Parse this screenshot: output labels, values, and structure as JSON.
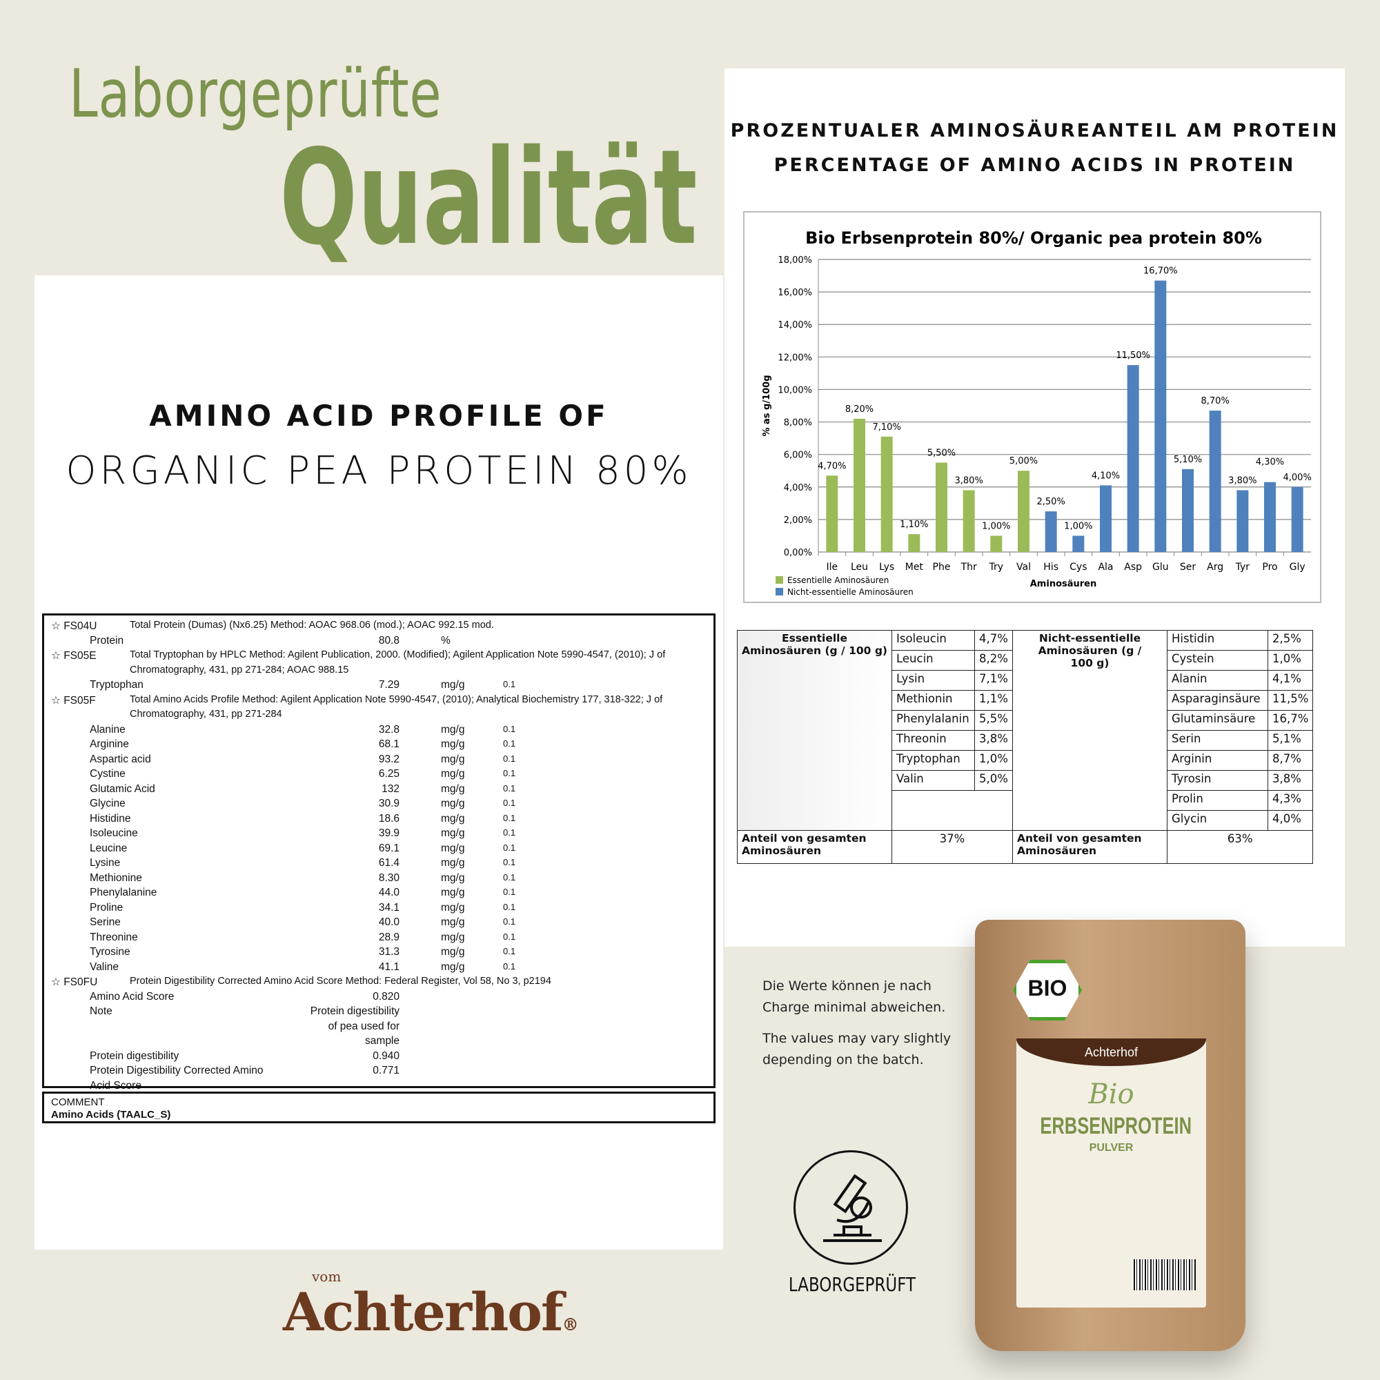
{
  "header": {
    "line1": "Laborgeprüfte",
    "line2": "Qualität"
  },
  "right_heading": {
    "line1": "PROZENTUALER AMINOSÄUREANTEIL AM PROTEIN",
    "line2": "PERCENTAGE OF AMINO ACIDS IN PROTEIN"
  },
  "left_heading": {
    "line1": "AMINO ACID PROFILE OF",
    "line2": "ORGANIC PEA PROTEIN 80%"
  },
  "lab_report": {
    "rows": [
      {
        "type": "method",
        "code": "☆ FS04U",
        "desc": "Total Protein (Dumas) (Nx6.25)    Method: AOAC 968.06 (mod.); AOAC 992.15 mod."
      },
      {
        "type": "result",
        "name": "Protein",
        "value": "80.8",
        "unit": "%",
        "loq": ""
      },
      {
        "type": "method",
        "code": "☆ FS05E",
        "desc": "Total Tryptophan by HPLC    Method: Agilent Publication, 2000. (Modified); Agilent Application Note 5990-4547, (2010); J of"
      },
      {
        "type": "cont",
        "desc": "Chromatography, 431, pp 271-284; AOAC 988.15"
      },
      {
        "type": "result",
        "name": "Tryptophan",
        "value": "7.29",
        "unit": "mg/g",
        "loq": "0.1"
      },
      {
        "type": "method",
        "code": "☆ FS05F",
        "desc": "Total Amino Acids Profile    Method: Agilent Application Note 5990-4547, (2010); Analytical Biochemistry 177, 318-322; J of"
      },
      {
        "type": "cont",
        "desc": "Chromatography, 431, pp 271-284"
      },
      {
        "type": "result",
        "name": "Alanine",
        "value": "32.8",
        "unit": "mg/g",
        "loq": "0.1"
      },
      {
        "type": "result",
        "name": "Arginine",
        "value": "68.1",
        "unit": "mg/g",
        "loq": "0.1"
      },
      {
        "type": "result",
        "name": "Aspartic acid",
        "value": "93.2",
        "unit": "mg/g",
        "loq": "0.1"
      },
      {
        "type": "result",
        "name": "Cystine",
        "value": "6.25",
        "unit": "mg/g",
        "loq": "0.1"
      },
      {
        "type": "result",
        "name": "Glutamic Acid",
        "value": "132",
        "unit": "mg/g",
        "loq": "0.1"
      },
      {
        "type": "result",
        "name": "Glycine",
        "value": "30.9",
        "unit": "mg/g",
        "loq": "0.1"
      },
      {
        "type": "result",
        "name": "Histidine",
        "value": "18.6",
        "unit": "mg/g",
        "loq": "0.1"
      },
      {
        "type": "result",
        "name": "Isoleucine",
        "value": "39.9",
        "unit": "mg/g",
        "loq": "0.1"
      },
      {
        "type": "result",
        "name": "Leucine",
        "value": "69.1",
        "unit": "mg/g",
        "loq": "0.1"
      },
      {
        "type": "result",
        "name": "Lysine",
        "value": "61.4",
        "unit": "mg/g",
        "loq": "0.1"
      },
      {
        "type": "result",
        "name": "Methionine",
        "value": "8.30",
        "unit": "mg/g",
        "loq": "0.1"
      },
      {
        "type": "result",
        "name": "Phenylalanine",
        "value": "44.0",
        "unit": "mg/g",
        "loq": "0.1"
      },
      {
        "type": "result",
        "name": "Proline",
        "value": "34.1",
        "unit": "mg/g",
        "loq": "0.1"
      },
      {
        "type": "result",
        "name": "Serine",
        "value": "40.0",
        "unit": "mg/g",
        "loq": "0.1"
      },
      {
        "type": "result",
        "name": "Threonine",
        "value": "28.9",
        "unit": "mg/g",
        "loq": "0.1"
      },
      {
        "type": "result",
        "name": "Tyrosine",
        "value": "31.3",
        "unit": "mg/g",
        "loq": "0.1"
      },
      {
        "type": "result",
        "name": "Valine",
        "value": "41.1",
        "unit": "mg/g",
        "loq": "0.1"
      },
      {
        "type": "method",
        "code": "☆ FS0FU",
        "desc": "Protein Digestibility Corrected Amino Acid Score    Method: Federal Register, Vol 58, No 3, p2194"
      },
      {
        "type": "result",
        "name": "Amino Acid Score",
        "value": "0.820",
        "unit": "",
        "loq": ""
      },
      {
        "type": "result",
        "name": "Note",
        "value": "Protein digestibility",
        "unit": "",
        "loq": ""
      },
      {
        "type": "result",
        "name": "",
        "value": "of pea used for",
        "unit": "",
        "loq": ""
      },
      {
        "type": "result",
        "name": "",
        "value": "sample",
        "unit": "",
        "loq": ""
      },
      {
        "type": "result",
        "name": "Protein digestibility",
        "value": "0.940",
        "unit": "",
        "loq": ""
      },
      {
        "type": "result",
        "name": "Protein Digestibility Corrected Amino",
        "value": "0.771",
        "unit": "",
        "loq": ""
      },
      {
        "type": "result",
        "name": "Acid Score",
        "value": "",
        "unit": "",
        "loq": ""
      }
    ],
    "comment_label": "COMMENT",
    "comment_value": "Amino Acids (TAALC_S)"
  },
  "chart_data": {
    "type": "bar",
    "title": "Bio Erbsenprotein  80%/ Organic pea protein 80%",
    "xlabel": "Aminosäuren",
    "ylabel": "% as g/100g",
    "ylim": [
      0,
      18
    ],
    "yticks": [
      "0,00%",
      "2,00%",
      "4,00%",
      "6,00%",
      "8,00%",
      "10,00%",
      "12,00%",
      "14,00%",
      "16,00%",
      "18,00%"
    ],
    "grid": true,
    "legend_placement": "bottom-left",
    "categories": [
      "Ile",
      "Leu",
      "Lys",
      "Met",
      "Phe",
      "Thr",
      "Try",
      "Val",
      "His",
      "Cys",
      "Ala",
      "Asp",
      "Glu",
      "Ser",
      "Arg",
      "Tyr",
      "Pro",
      "Gly"
    ],
    "values": [
      4.7,
      8.2,
      7.1,
      1.1,
      5.5,
      3.8,
      1.0,
      5.0,
      2.5,
      1.0,
      4.1,
      11.5,
      16.7,
      5.1,
      8.7,
      3.8,
      4.3,
      4.0
    ],
    "labels": [
      "4,70%",
      "8,20%",
      "7,10%",
      "1,10%",
      "5,50%",
      "3,80%",
      "1,00%",
      "5,00%",
      "2,50%",
      "1,00%",
      "4,10%",
      "11,50%",
      "16,70%",
      "5,10%",
      "8,70%",
      "3,80%",
      "4,30%",
      "4,00%"
    ],
    "groups": [
      "ess",
      "ess",
      "ess",
      "ess",
      "ess",
      "ess",
      "ess",
      "ess",
      "non",
      "non",
      "non",
      "non",
      "non",
      "non",
      "non",
      "non",
      "non",
      "non"
    ],
    "series": [
      {
        "name": "Essentielle Aminosäuren",
        "key": "ess",
        "color": "#9bbb59"
      },
      {
        "name": "Nicht-essentielle Aminosäuren",
        "key": "non",
        "color": "#4f81bd"
      }
    ]
  },
  "amino_table": {
    "ess_header": "Essentielle Aminosäuren (g / 100 g)",
    "non_header": "Nicht-essentielle Aminosäuren (g / 100 g)",
    "ess": [
      [
        "Isoleucin",
        "4,7%"
      ],
      [
        "Leucin",
        "8,2%"
      ],
      [
        "Lysin",
        "7,1%"
      ],
      [
        "Methionin",
        "1,1%"
      ],
      [
        "Phenylalanin",
        "5,5%"
      ],
      [
        "Threonin",
        "3,8%"
      ],
      [
        "Tryptophan",
        "1,0%"
      ],
      [
        "Valin",
        "5,0%"
      ]
    ],
    "non": [
      [
        "Histidin",
        "2,5%"
      ],
      [
        "Cystein",
        "1,0%"
      ],
      [
        "Alanin",
        "4,1%"
      ],
      [
        "Asparaginsäure",
        "11,5%"
      ],
      [
        "Glutaminsäure",
        "16,7%"
      ],
      [
        "Serin",
        "5,1%"
      ],
      [
        "Arginin",
        "8,7%"
      ],
      [
        "Tyrosin",
        "3,8%"
      ],
      [
        "Prolin",
        "4,3%"
      ],
      [
        "Glycin",
        "4,0%"
      ]
    ],
    "share_label": "Anteil von gesamten Aminosäuren",
    "ess_share": "37%",
    "non_share": "63%"
  },
  "disclaimer": {
    "de1": "Die Werte können je nach",
    "de2": "Charge minimal abweichen.",
    "en1": "The values may vary slightly",
    "en2": "depending on the batch."
  },
  "badge": {
    "label": "LABORGEPRÜFT",
    "icon": "microscope-icon"
  },
  "logo": {
    "small": "vom",
    "main": "Achterhof",
    "mark": "®"
  },
  "package": {
    "brand": "Achterhof",
    "bio_script": "Bio",
    "name": "ERBSENPROTEIN",
    "sub": "PULVER",
    "bio_badge": "BIO"
  },
  "colors": {
    "accent_green": "#7d944f",
    "brand_brown": "#6b3a1f",
    "essential": "#9bbb59",
    "non_essential": "#4f81bd"
  }
}
